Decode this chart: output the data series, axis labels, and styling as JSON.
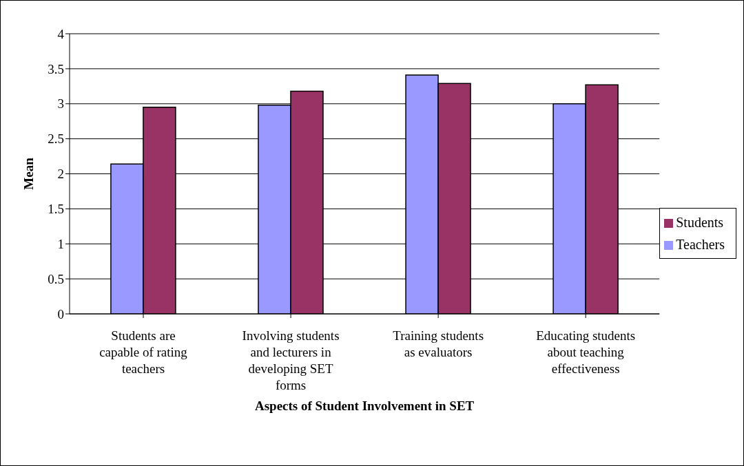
{
  "chart_data": {
    "type": "bar",
    "xlabel": "Aspects of Student Involvement in SET",
    "ylabel": "Mean",
    "categories": [
      "Students are capable of rating teachers",
      "Involving students and lecturers in developing SET forms",
      "Training students as evaluators",
      "Educating students about teaching effectiveness"
    ],
    "series": [
      {
        "name": "Teachers",
        "color": "#9999ff",
        "values": [
          2.14,
          2.98,
          3.41,
          3.0
        ]
      },
      {
        "name": "Students",
        "color": "#993366",
        "values": [
          2.95,
          3.18,
          3.29,
          3.27
        ]
      }
    ],
    "ylim": [
      0,
      4
    ],
    "yticks": [
      0,
      0.5,
      1,
      1.5,
      2,
      2.5,
      3,
      3.5,
      4
    ],
    "grid": "y",
    "legend": "right"
  }
}
